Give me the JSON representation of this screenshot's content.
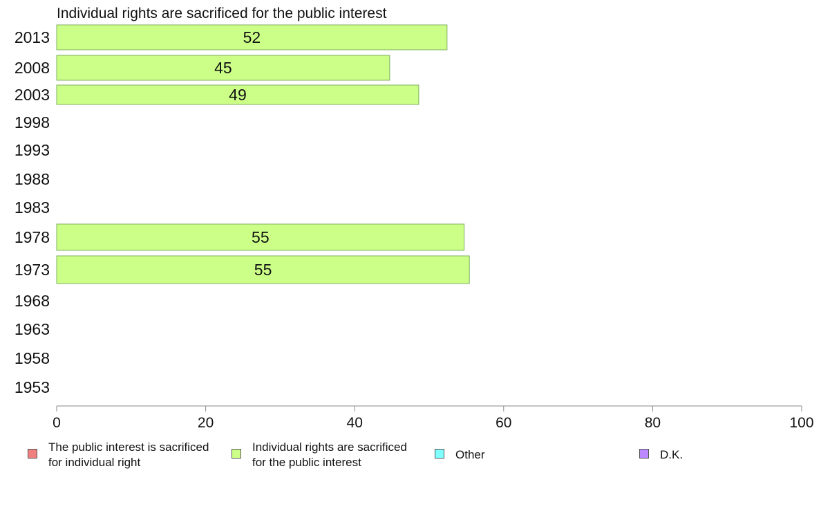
{
  "chart_data": {
    "type": "bar",
    "orientation": "horizontal",
    "title": "Individual rights are sacrificed for the public interest",
    "categories": [
      "2013",
      "2008",
      "2003",
      "1998",
      "1993",
      "1988",
      "1983",
      "1978",
      "1973",
      "1968",
      "1963",
      "1958",
      "1953"
    ],
    "series": [
      {
        "name": "Individual rights are sacrificed for the public interest",
        "color": "#ccff88",
        "values": [
          52.4,
          44.7,
          48.6,
          null,
          null,
          null,
          null,
          54.7,
          55.4,
          null,
          null,
          null,
          null
        ],
        "labels": [
          "52",
          "45",
          "49",
          "",
          "",
          "",
          "",
          "55",
          "55",
          "",
          "",
          "",
          ""
        ]
      }
    ],
    "xlim": [
      0,
      100
    ],
    "xticks": [
      "0",
      "20",
      "40",
      "60",
      "80",
      "100"
    ],
    "grid": false,
    "legend_position": "bottom"
  },
  "legend": {
    "items": [
      {
        "label": "The public interest is sacrificed\nfor individual right",
        "color": "#f08080"
      },
      {
        "label": "Individual rights are sacrificed\nfor the public interest",
        "color": "#ccff88"
      },
      {
        "label": "Other",
        "color": "#80ffff"
      },
      {
        "label": "D.K.",
        "color": "#bb88ff"
      }
    ]
  }
}
